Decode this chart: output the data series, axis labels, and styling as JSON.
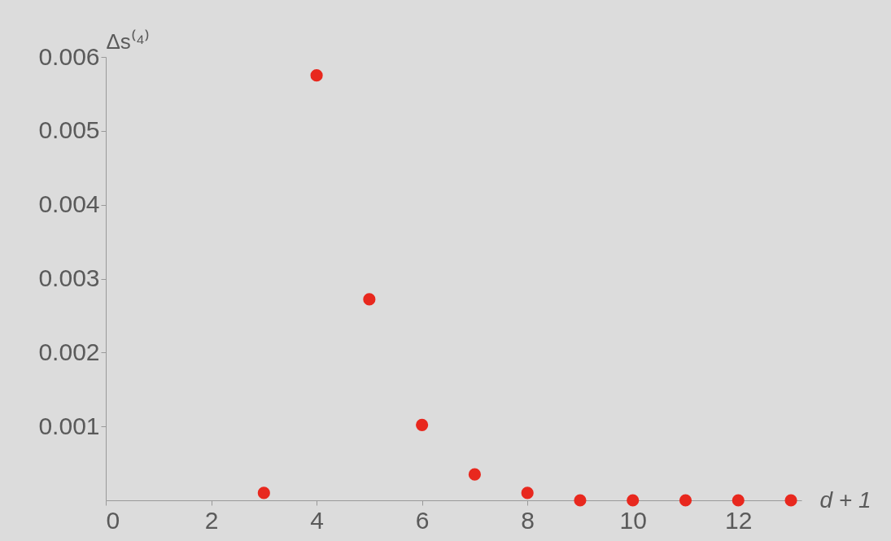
{
  "chart_data": {
    "type": "scatter",
    "xlabel": "d + 1",
    "ylabel": "Δs⁽⁴⁾",
    "x": [
      3,
      4,
      5,
      6,
      7,
      8,
      9,
      10,
      11,
      12,
      13
    ],
    "series": [
      {
        "color": "#e8281e",
        "values": [
          0.0001,
          0.00575,
          0.00272,
          0.00102,
          0.00035,
          0.0001,
          0.0,
          0.0,
          0.0,
          0.0,
          0.0
        ]
      }
    ],
    "xlim": [
      0,
      13.2
    ],
    "ylim": [
      0,
      0.006
    ],
    "xticks": [
      0,
      2,
      4,
      6,
      8,
      10,
      12
    ],
    "yticks": [
      0.001,
      0.002,
      0.003,
      0.004,
      0.005,
      0.006
    ],
    "marker": "circle"
  }
}
